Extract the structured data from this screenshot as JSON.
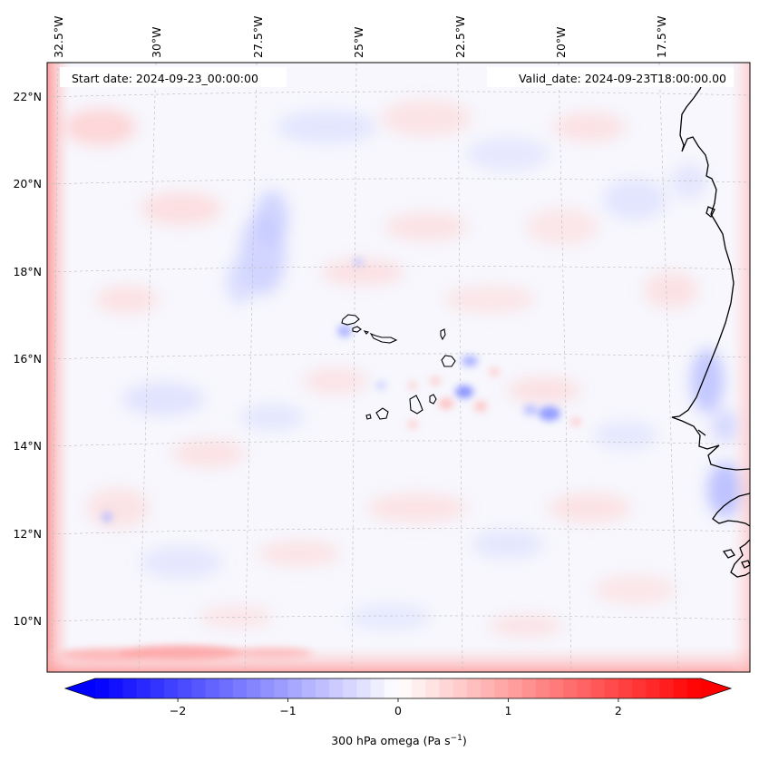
{
  "map": {
    "start_label": "Start date: 2024-09-23_00:00:00",
    "valid_label": "Valid_date: 2024-09-23T18:00:00.00",
    "lon_ticks": [
      "32.5°W",
      "30°W",
      "27.5°W",
      "25°W",
      "22.5°W",
      "20°W",
      "17.5°W"
    ],
    "lat_ticks": [
      "22°N",
      "20°N",
      "18°N",
      "16°N",
      "14°N",
      "12°N",
      "10°N"
    ],
    "colorbar": {
      "label": "300 hPa omega (Pa s",
      "label_sup": "−1",
      "label_suffix": ")",
      "ticks": [
        "−2",
        "−1",
        "0",
        "1",
        "2"
      ],
      "tick_values": [
        -2,
        -1,
        0,
        1,
        2
      ],
      "range": [
        -2.75,
        2.75
      ],
      "colormap": "bwr",
      "extend": "both"
    },
    "colors": {
      "negative": "#0000ff",
      "neutral": "#ffffff",
      "positive": "#ff0000",
      "coastline": "#000000",
      "gridlines": "#cccccc"
    }
  }
}
